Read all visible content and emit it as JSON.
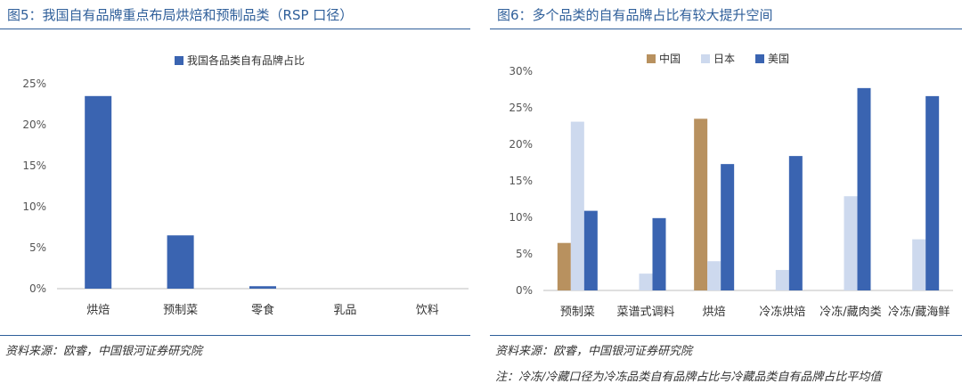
{
  "colors": {
    "accent": "#2f5f9a",
    "china": "#b8915f",
    "japan": "#cdd9ee",
    "usa": "#3a64b1"
  },
  "left": {
    "title": "图5：我国自有品牌重点布局烘焙和预制品类（RSP 口径）",
    "source": "资料来源：欧睿，中国银河证券研究院"
  },
  "right": {
    "title": "图6：多个品类的自有品牌占比有较大提升空间",
    "source": "资料来源：欧睿，中国银河证券研究院",
    "note": "注：冷冻/冷藏口径为冷冻品类自有品牌占比与冷藏品类自有品牌占比平均值"
  },
  "chart_data": [
    {
      "type": "bar",
      "categories": [
        "烘焙",
        "预制菜",
        "零食",
        "乳品",
        "饮料"
      ],
      "series": [
        {
          "name": "我国各品类自有品牌占比",
          "values": [
            23.5,
            6.5,
            0.3,
            0.0,
            0.0
          ]
        }
      ],
      "ylim": [
        0,
        25
      ],
      "yticks": [
        "0%",
        "5%",
        "10%",
        "15%",
        "20%",
        "25%"
      ],
      "legend_position": "top",
      "grid": false
    },
    {
      "type": "bar",
      "categories": [
        "预制菜",
        "菜谱式调料",
        "烘焙",
        "冷冻烘焙",
        "冷冻/藏肉类",
        "冷冻/藏海鲜"
      ],
      "series": [
        {
          "name": "中国",
          "values": [
            6.5,
            0,
            23.5,
            0,
            0,
            0
          ]
        },
        {
          "name": "日本",
          "values": [
            23.1,
            2.3,
            4.0,
            2.8,
            12.9,
            7.0
          ]
        },
        {
          "name": "美国",
          "values": [
            10.9,
            9.9,
            17.3,
            18.4,
            27.7,
            26.6
          ]
        }
      ],
      "ylim": [
        0,
        30
      ],
      "yticks": [
        "0%",
        "5%",
        "10%",
        "15%",
        "20%",
        "25%",
        "30%"
      ],
      "legend_position": "top",
      "grid": false
    }
  ]
}
